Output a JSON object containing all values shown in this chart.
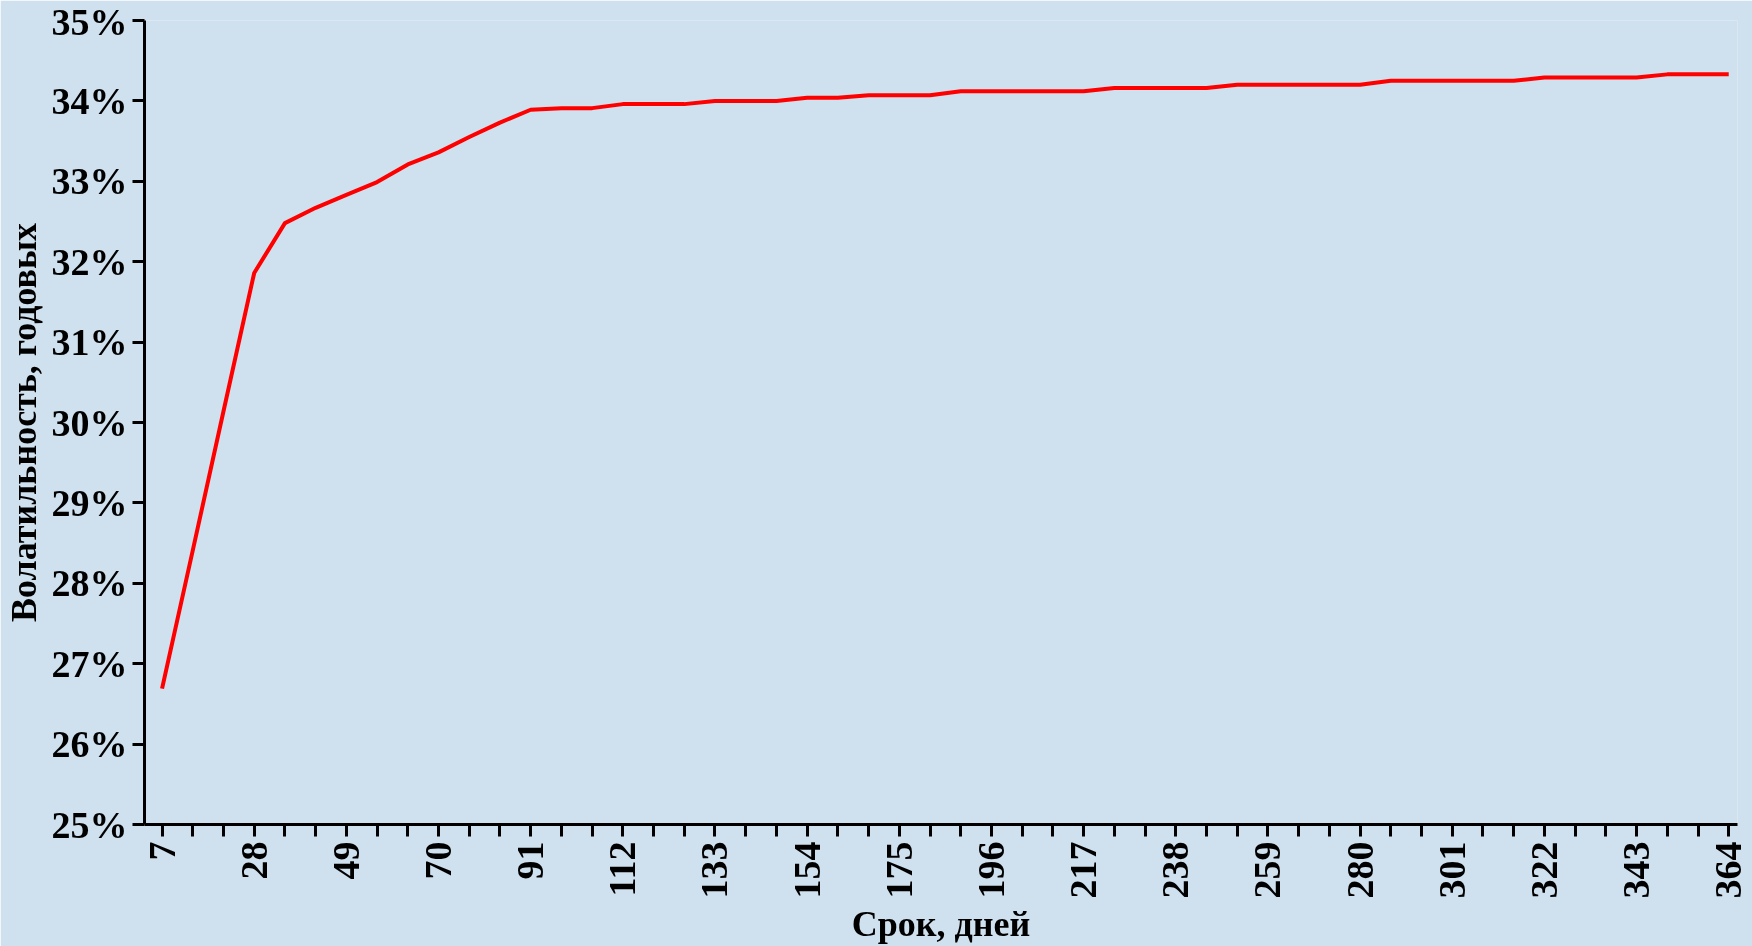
{
  "chart_data": {
    "type": "line",
    "xlabel": "Срок, дней",
    "ylabel": "Волатильность, годовых",
    "x": [
      7,
      14,
      21,
      28,
      35,
      42,
      49,
      56,
      63,
      70,
      77,
      84,
      91,
      98,
      105,
      112,
      119,
      126,
      133,
      140,
      147,
      154,
      161,
      168,
      175,
      182,
      189,
      196,
      203,
      210,
      217,
      224,
      231,
      238,
      245,
      252,
      259,
      266,
      273,
      280,
      287,
      294,
      301,
      308,
      315,
      322,
      329,
      336,
      343,
      350,
      357,
      364
    ],
    "series": [
      {
        "color": "#ff0000",
        "values": [
          26.69,
          28.41,
          30.14,
          31.86,
          32.48,
          32.67,
          32.83,
          32.99,
          33.21,
          33.36,
          33.55,
          33.73,
          33.89,
          33.91,
          33.91,
          33.96,
          33.96,
          33.96,
          34.0,
          34.0,
          34.0,
          34.04,
          34.04,
          34.07,
          34.07,
          34.07,
          34.12,
          34.12,
          34.12,
          34.12,
          34.12,
          34.16,
          34.16,
          34.16,
          34.16,
          34.2,
          34.2,
          34.2,
          34.2,
          34.2,
          34.25,
          34.25,
          34.25,
          34.25,
          34.25,
          34.29,
          34.29,
          34.29,
          34.29,
          34.33,
          34.33,
          34.33
        ]
      }
    ],
    "xlim": [
      3,
      366
    ],
    "xticks": [
      7,
      {
        "value": 14,
        "label": null
      },
      {
        "value": 21,
        "label": null
      },
      28,
      {
        "value": 35,
        "label": null
      },
      {
        "value": 42,
        "label": null
      },
      49,
      {
        "value": 56,
        "label": null
      },
      {
        "value": 63,
        "label": null
      },
      70,
      {
        "value": 77,
        "label": null
      },
      {
        "value": 84,
        "label": null
      },
      91,
      {
        "value": 98,
        "label": null
      },
      {
        "value": 105,
        "label": null
      },
      112,
      {
        "value": 119,
        "label": null
      },
      {
        "value": 126,
        "label": null
      },
      133,
      {
        "value": 140,
        "label": null
      },
      {
        "value": 147,
        "label": null
      },
      154,
      {
        "value": 161,
        "label": null
      },
      {
        "value": 168,
        "label": null
      },
      175,
      {
        "value": 182,
        "label": null
      },
      {
        "value": 189,
        "label": null
      },
      196,
      {
        "value": 203,
        "label": null
      },
      {
        "value": 210,
        "label": null
      },
      217,
      {
        "value": 224,
        "label": null
      },
      {
        "value": 231,
        "label": null
      },
      238,
      {
        "value": 245,
        "label": null
      },
      {
        "value": 252,
        "label": null
      },
      259,
      {
        "value": 266,
        "label": null
      },
      {
        "value": 273,
        "label": null
      },
      280,
      {
        "value": 287,
        "label": null
      },
      {
        "value": 294,
        "label": null
      },
      301,
      {
        "value": 308,
        "label": null
      },
      {
        "value": 315,
        "label": null
      },
      322,
      {
        "value": 329,
        "label": null
      },
      {
        "value": 336,
        "label": null
      },
      343,
      {
        "value": 350,
        "label": null
      },
      {
        "value": 357,
        "label": null
      },
      364
    ],
    "ylim": [
      25,
      35
    ],
    "yticks": [
      {
        "value": 25,
        "label": "25%"
      },
      {
        "value": 26,
        "label": "26%"
      },
      {
        "value": 27,
        "label": "27%"
      },
      {
        "value": 28,
        "label": "28%"
      },
      {
        "value": 29,
        "label": "29%"
      },
      {
        "value": 30,
        "label": "30%"
      },
      {
        "value": 31,
        "label": "31%"
      },
      {
        "value": 32,
        "label": "32%"
      },
      {
        "value": 33,
        "label": "33%"
      },
      {
        "value": 34,
        "label": "34%"
      },
      {
        "value": 35,
        "label": "35%"
      }
    ],
    "grid": false,
    "marker": "none",
    "line_style": "solid"
  }
}
